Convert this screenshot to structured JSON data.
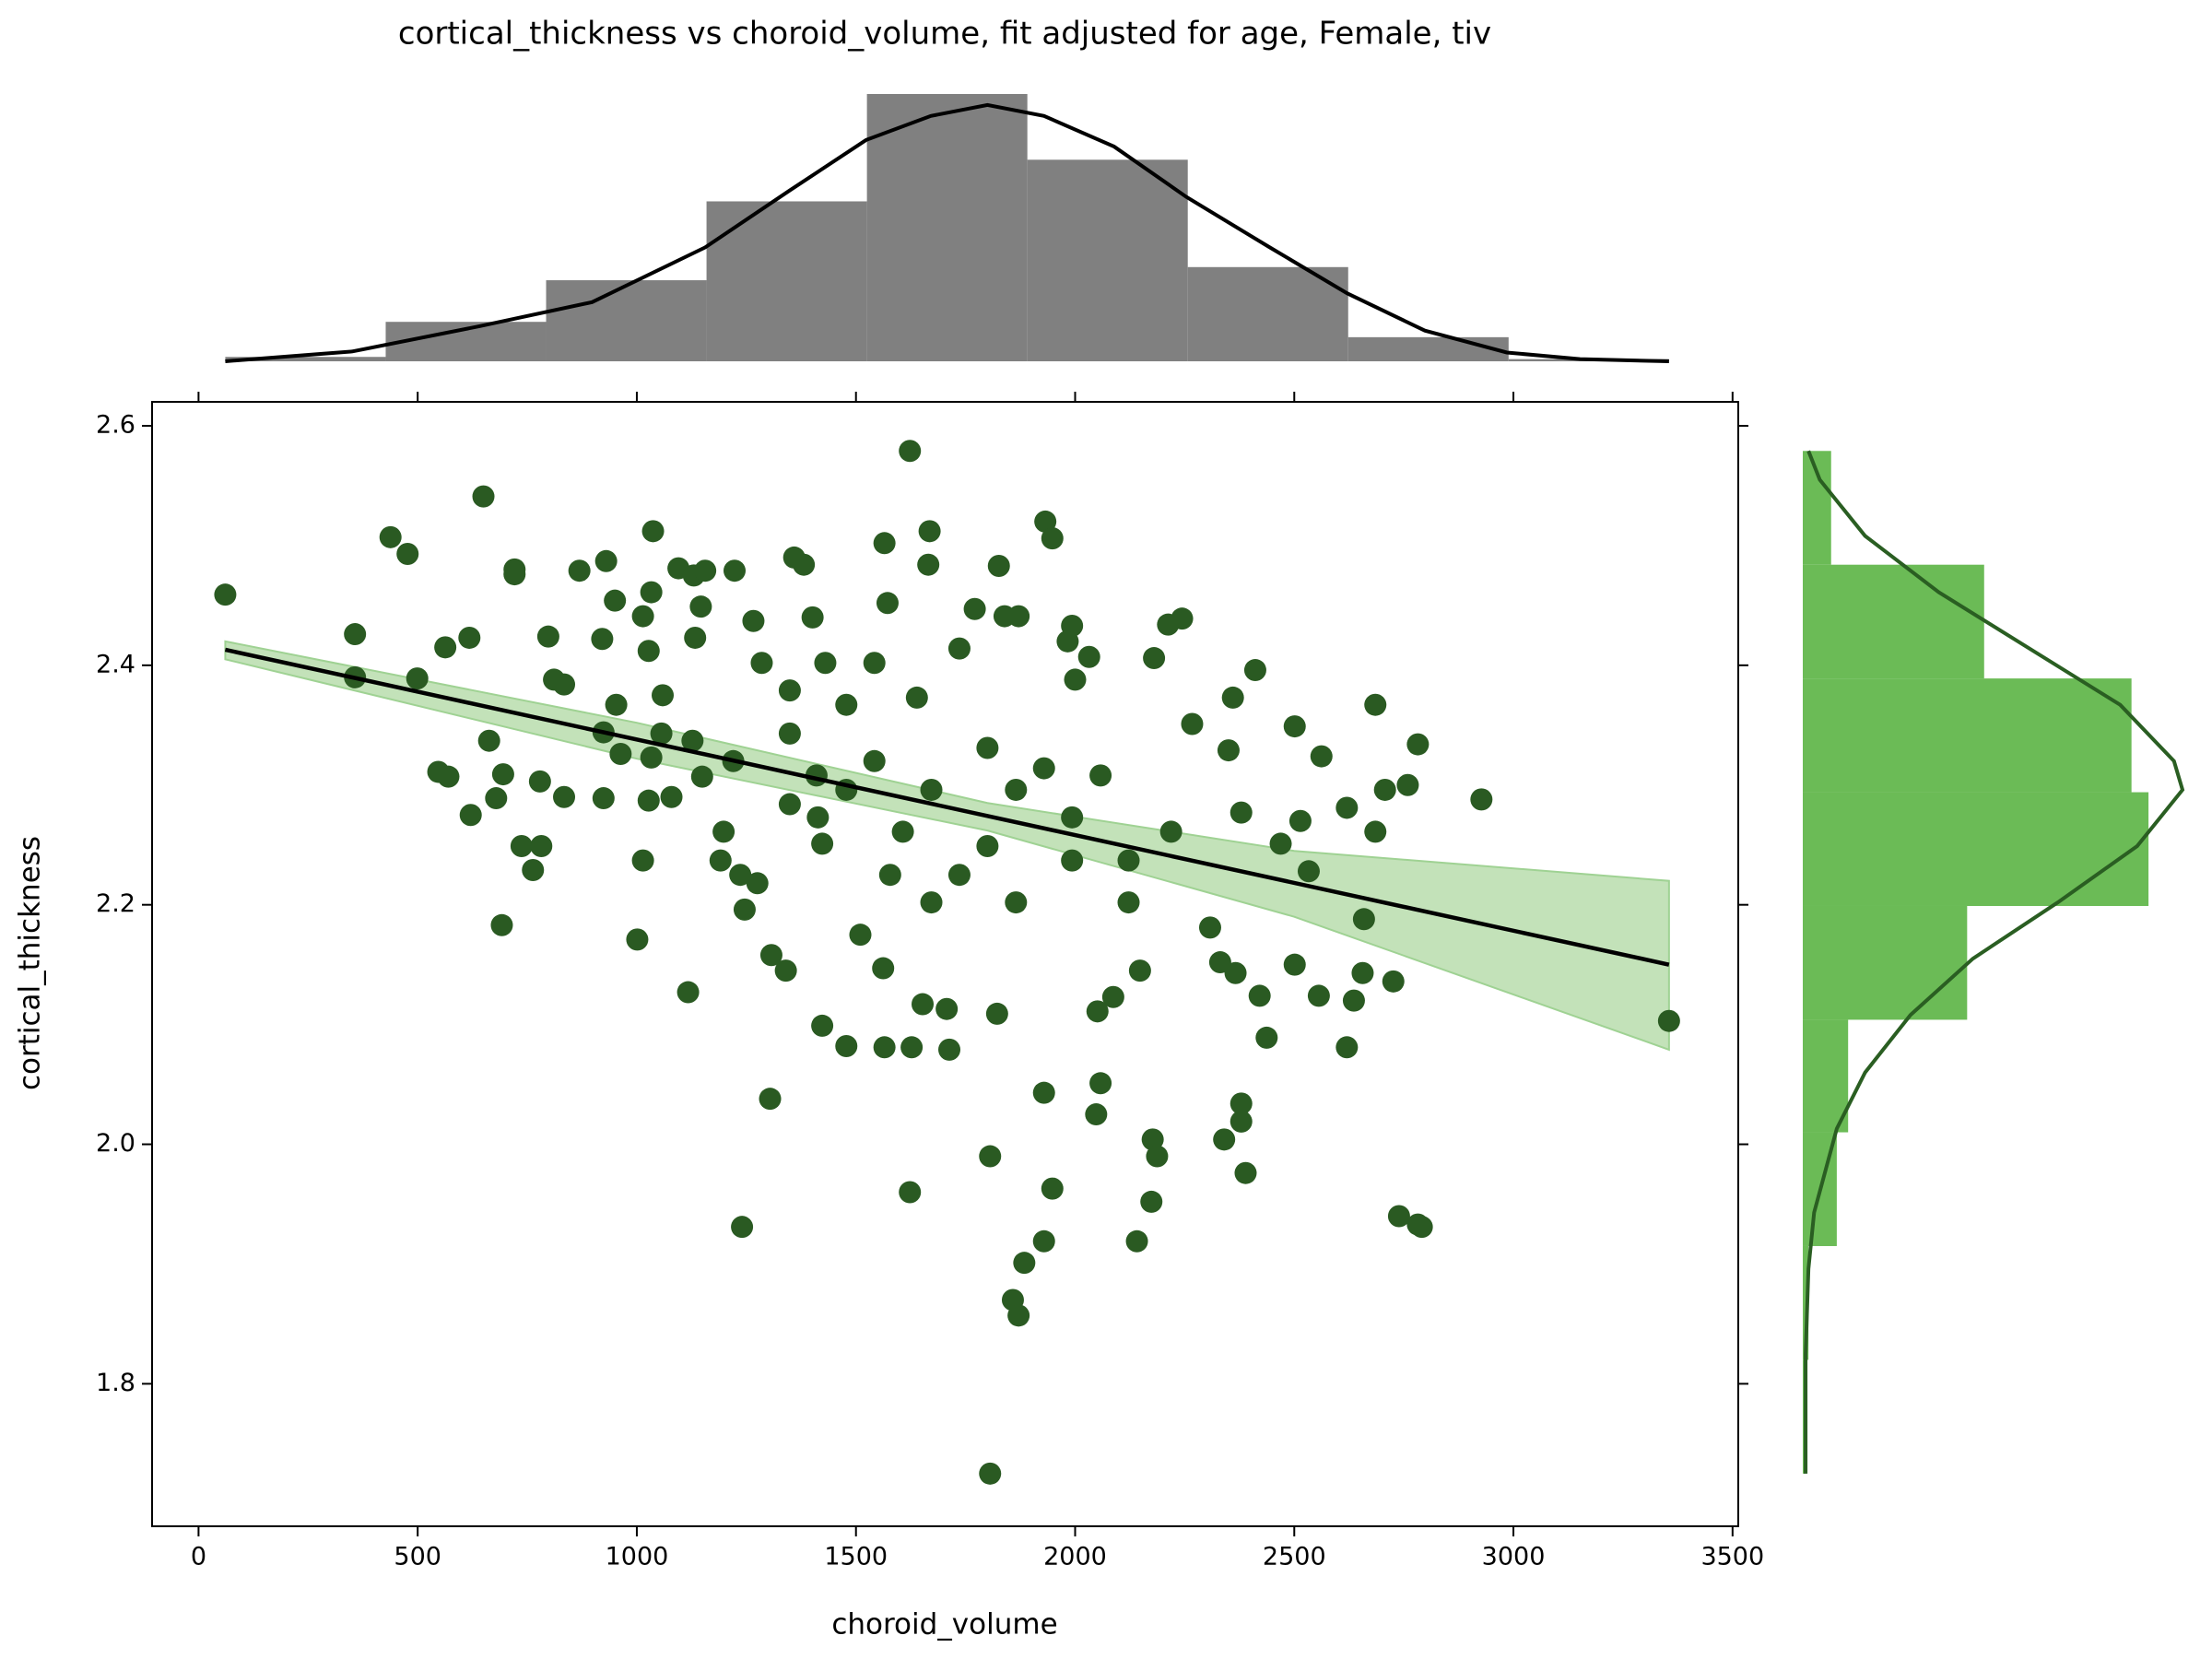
{
  "chart_data": [
    {
      "type": "scatter",
      "title": "cortical_thickness vs choroid_volume, fit adjusted for age, Female, tiv",
      "xlabel": "choroid_volume",
      "ylabel": "cortical_thickness",
      "color": "#2a5a22",
      "x": [
        61,
        650,
        438,
        477,
        357,
        357,
        499,
        563,
        618,
        547,
        570,
        621,
        663,
        679,
        695,
        692,
        721,
        721,
        737,
        763,
        782,
        779,
        798,
        811,
        834,
        834,
        869,
        930,
        950,
        921,
        924,
        953,
        963,
        924,
        1001,
        1014,
        1037,
        1033,
        1027,
        1014,
        1027,
        1079,
        1033,
        1056,
        1059,
        1095,
        1130,
        1146,
        1133,
        1117,
        1156,
        1127,
        1149,
        1191,
        1198,
        1223,
        1236,
        1246,
        1240,
        1266,
        1275,
        1307,
        1304,
        1340,
        1359,
        1381,
        1401,
        1423,
        1410,
        1423,
        1478,
        1510,
        1562,
        1565,
        1565,
        1572,
        1578,
        1623,
        1623,
        1627,
        1668,
        1652,
        1707,
        1713,
        1665,
        1771,
        1806,
        1806,
        1822,
        1826,
        1839,
        1871,
        1858,
        1871,
        1884,
        1929,
        1932,
        1948,
        1929,
        1948,
        1993,
        1983,
        2032,
        2000,
        2058,
        2048,
        2051,
        2087,
        2148,
        2141,
        2177,
        2187,
        2174,
        2180,
        2212,
        2244,
        2267,
        2308,
        2331,
        2366,
        2379,
        2340,
        2389,
        2379,
        2411,
        2360,
        2350,
        2379,
        2437,
        2421,
        2469,
        2501,
        2514,
        2501,
        2533,
        2556,
        2562,
        2620,
        2620,
        2636,
        2659,
        2656,
        2685,
        2685,
        2707,
        2726,
        2739,
        2782,
        2791,
        2782,
        2759,
        2927,
        3355,
        1285,
        1349,
        1430,
        1478,
        1542,
        1639,
        1736,
        1800,
        1865,
        1929,
        1993,
        2058,
        2122,
        2219,
        1349,
        1478,
        1607,
        1736,
        1542,
        1220,
        1672,
        1800,
        1993,
        2122,
        1865,
        1672,
        1413,
        1349
      ],
      "y": [
        2.459,
        2.541,
        2.507,
        2.493,
        2.426,
        2.39,
        2.389,
        2.415,
        2.423,
        2.311,
        2.307,
        2.275,
        2.337,
        2.289,
        2.309,
        2.183,
        2.48,
        2.476,
        2.249,
        2.229,
        2.249,
        2.303,
        2.424,
        2.388,
        2.384,
        2.29,
        2.479,
        2.487,
        2.454,
        2.422,
        2.344,
        2.367,
        2.326,
        2.289,
        2.171,
        2.237,
        2.512,
        2.461,
        2.412,
        2.441,
        2.287,
        2.29,
        2.323,
        2.343,
        2.375,
        2.481,
        2.475,
        2.449,
        2.423,
        2.127,
        2.479,
        2.337,
        2.307,
        2.237,
        2.261,
        2.479,
        2.225,
        2.196,
        1.931,
        2.437,
        2.218,
        2.158,
        2.038,
        2.145,
        2.49,
        2.484,
        2.44,
        2.099,
        2.308,
        2.251,
        2.082,
        2.175,
        2.147,
        2.081,
        2.502,
        2.452,
        2.225,
        2.579,
        1.96,
        2.081,
        2.512,
        2.117,
        2.113,
        2.079,
        2.484,
        2.447,
        1.725,
        1.99,
        2.109,
        2.483,
        2.441,
        2.441,
        1.87,
        1.857,
        1.901,
        1.919,
        2.52,
        2.506,
        2.043,
        1.963,
        2.433,
        2.42,
        2.407,
        2.388,
        2.051,
        2.025,
        2.111,
        2.123,
        2.145,
        1.919,
        2.004,
        1.99,
        1.952,
        2.406,
        2.434,
        2.439,
        2.351,
        2.181,
        2.152,
        2.143,
        2.019,
        2.004,
        1.976,
        2.034,
        2.396,
        2.373,
        2.329,
        2.277,
        2.089,
        2.124,
        2.251,
        2.349,
        2.27,
        2.15,
        2.228,
        2.124,
        2.324,
        2.281,
        2.081,
        2.12,
        2.188,
        2.143,
        2.367,
        2.261,
        2.296,
        2.136,
        1.94,
        1.933,
        1.931,
        2.334,
        2.3,
        2.288,
        2.103,
        2.402,
        2.379,
        2.402,
        2.367,
        2.402,
        2.373,
        2.414,
        2.331,
        2.296,
        2.314,
        2.273,
        2.308,
        2.237,
        2.261,
        2.343,
        2.296,
        2.261,
        2.225,
        2.32,
        2.32,
        2.296,
        2.249,
        2.237,
        2.202,
        2.202,
        2.202,
        2.273,
        2.284
      ],
      "fit": {
        "x": [
          61,
          3355
        ],
        "y": [
          2.413,
          2.15
        ],
        "color": "#000000"
      },
      "ci": {
        "x": [
          61,
          1000,
          1800,
          2500,
          3355
        ],
        "lower": [
          2.405,
          2.322,
          2.262,
          2.19,
          2.079
        ],
        "upper": [
          2.42,
          2.352,
          2.285,
          2.245,
          2.22
        ],
        "color": "#c3e2b9"
      },
      "xlim": [
        -106,
        3513
      ],
      "ylim": [
        1.681,
        2.62
      ],
      "xticks": [
        0,
        500,
        1000,
        1500,
        2000,
        2500,
        3000,
        3500
      ],
      "yticks": [
        1.8,
        {
          "value": 2,
          "label": "2.0"
        },
        2.2,
        2.4,
        2.6
      ]
    },
    {
      "type": "histogram",
      "orientation": "vertical",
      "color": "#808080",
      "bins": [
        61,
        427,
        793,
        1159,
        1525,
        1891,
        2257,
        2623,
        2989,
        3355
      ],
      "counts": [
        2,
        18,
        37,
        73,
        122,
        92,
        43,
        11,
        1
      ],
      "kde": {
        "color": "#000000",
        "x": [
          61,
          351,
          641,
          898,
          1156,
          1349,
          1523,
          1671,
          1800,
          1929,
          2089,
          2254,
          2444,
          2621,
          2798,
          2985,
          3152,
          3355
        ],
        "y": [
          0,
          4.5,
          16,
          27,
          52,
          78,
          101,
          112,
          117,
          112,
          98,
          75,
          52,
          31,
          14,
          4,
          1,
          0
        ]
      }
    },
    {
      "type": "histogram",
      "orientation": "horizontal",
      "color": "#6bbb56",
      "bins": [
        1.725,
        1.82,
        1.915,
        2.01,
        2.104,
        2.199,
        2.294,
        2.389,
        2.484,
        2.579
      ],
      "counts": [
        1,
        2,
        12,
        16,
        58,
        122,
        116,
        64,
        10
      ],
      "kde": {
        "color": "#2a5e22",
        "y": [
          1.725,
          1.825,
          1.896,
          1.943,
          2.013,
          2.06,
          2.108,
          2.155,
          2.202,
          2.249,
          2.296,
          2.32,
          2.367,
          2.414,
          2.461,
          2.508,
          2.555,
          2.579
        ],
        "x": [
          1,
          1,
          2,
          4,
          12,
          22,
          38,
          60,
          90,
          118,
          134,
          131,
          112,
          80,
          48,
          22,
          6,
          2
        ]
      }
    }
  ]
}
